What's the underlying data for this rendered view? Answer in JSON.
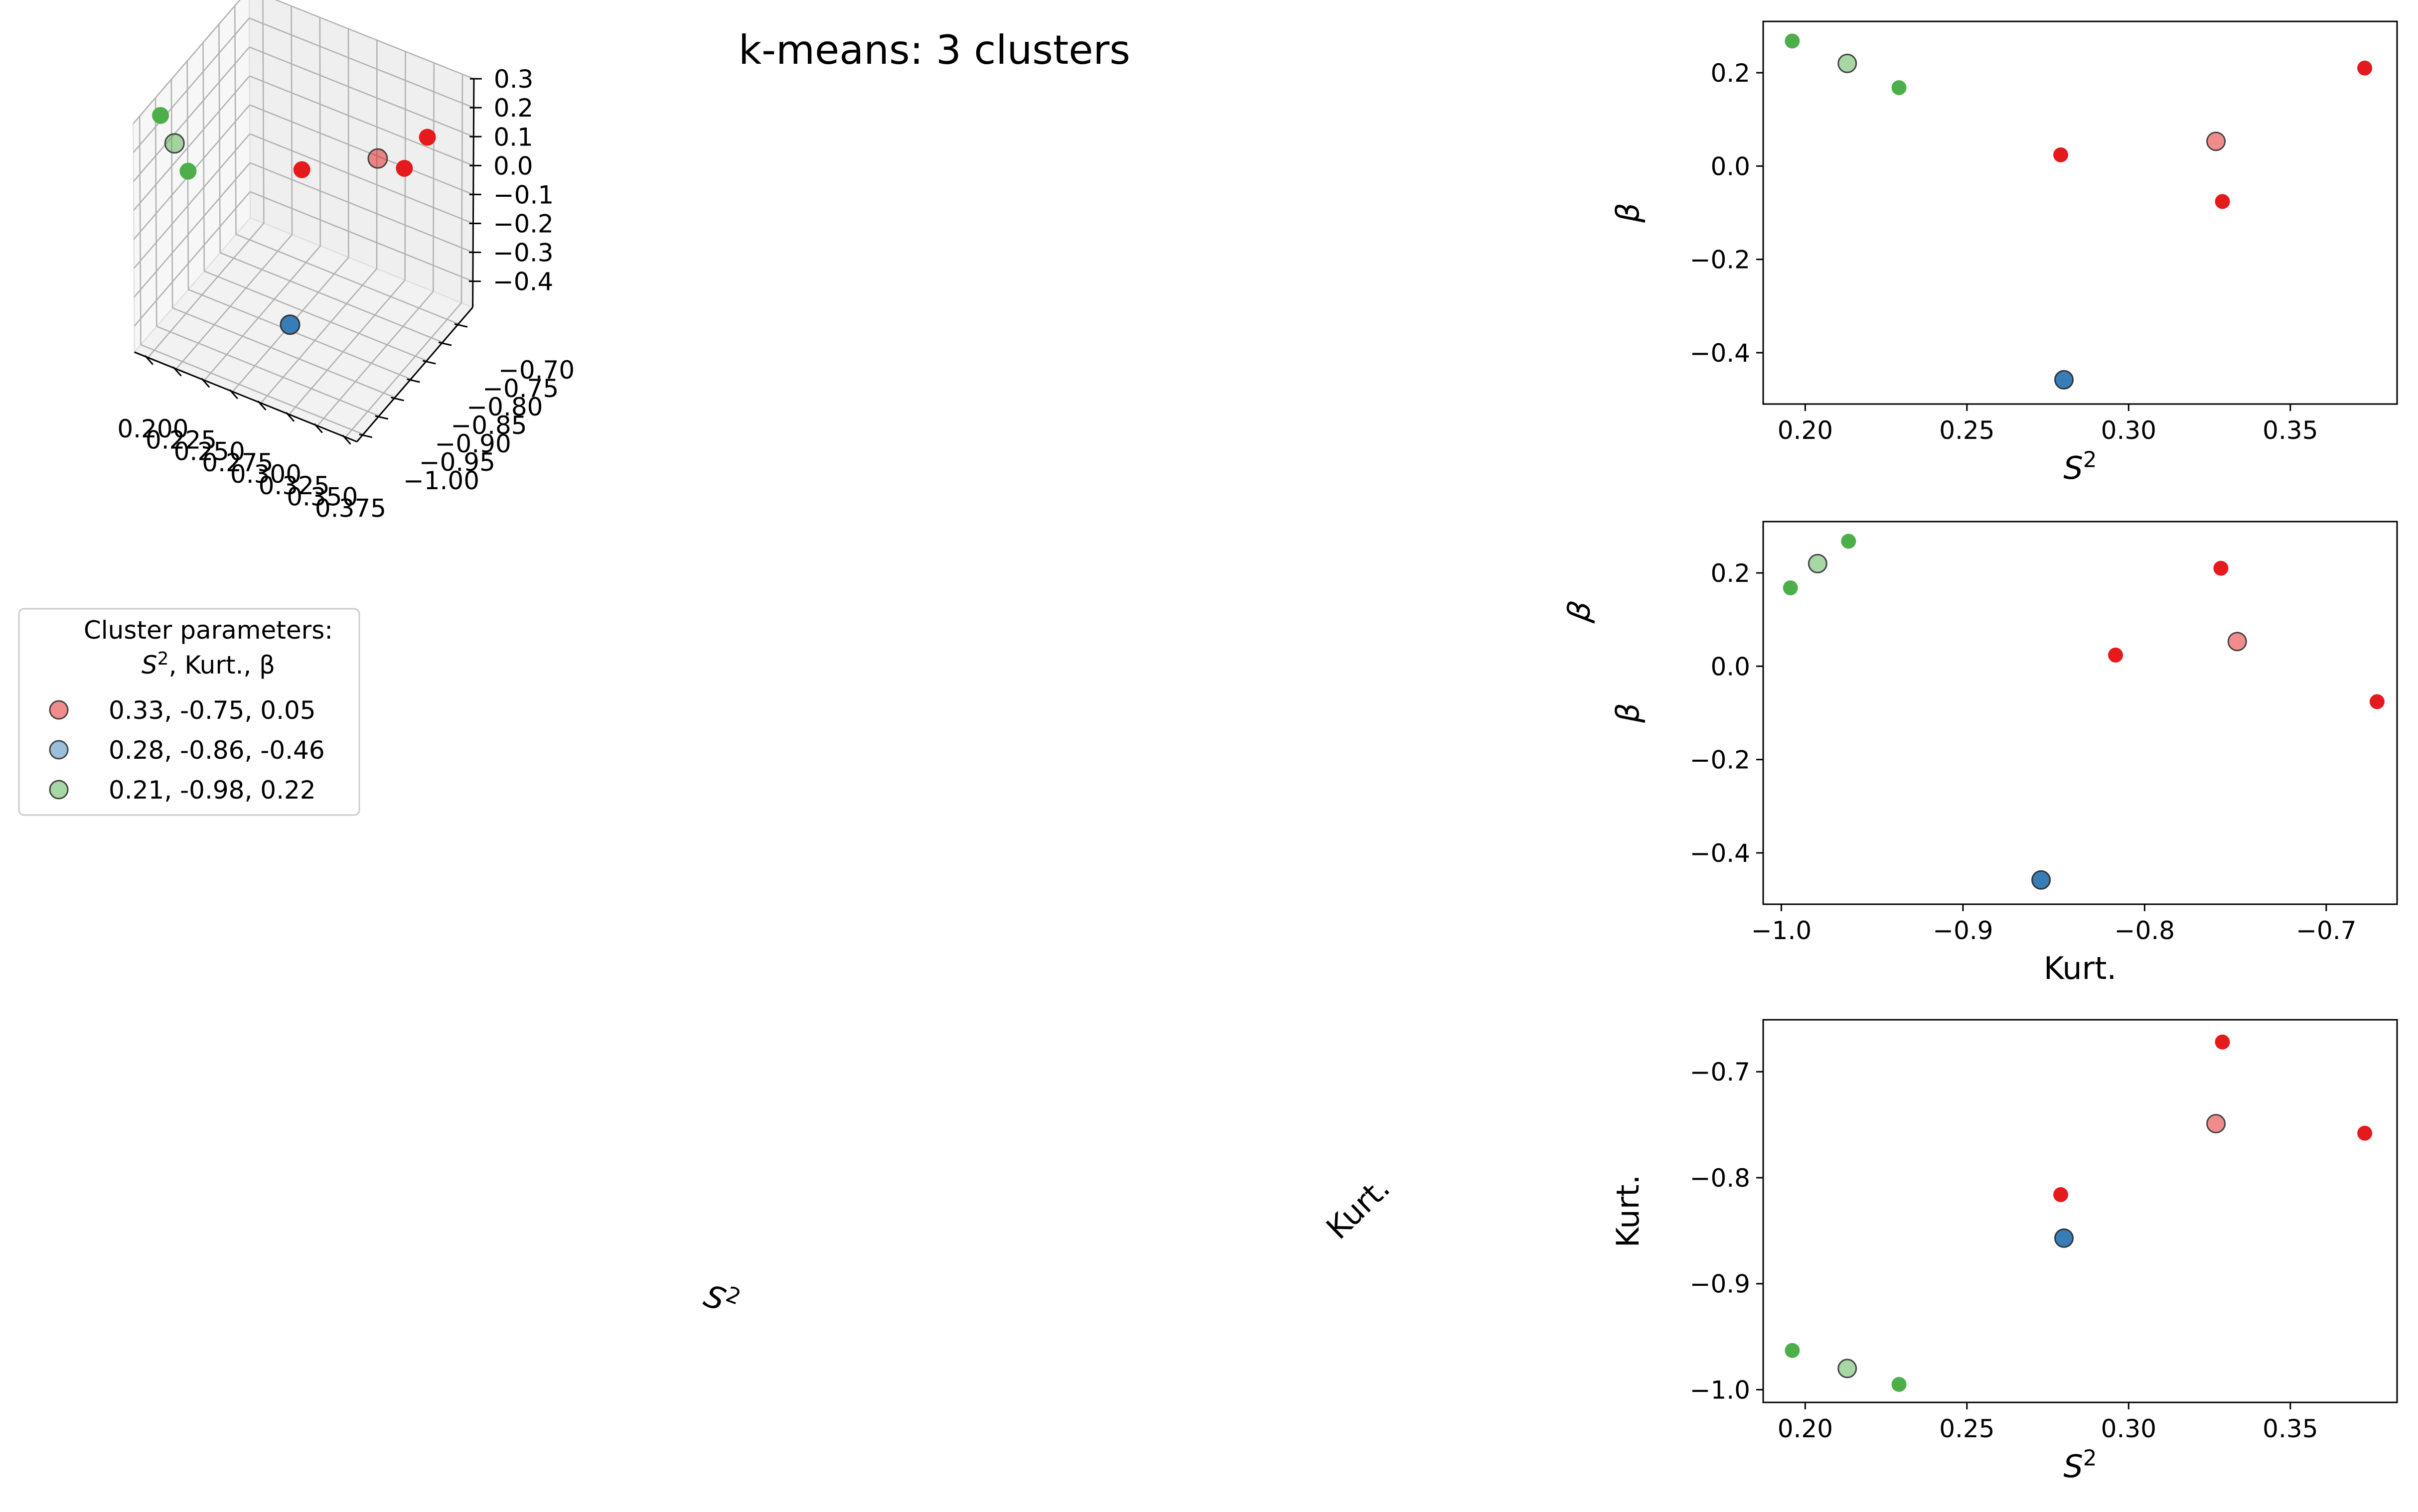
{
  "figure": {
    "title": "k-means: 3 clusters",
    "colors": {
      "red": "#e41a1c",
      "blue": "#377eb8",
      "green": "#4daf4a",
      "pane": "#f2f2f2",
      "grid": "#b0b0b0"
    }
  },
  "legend": {
    "title_line1": "Cluster parameters:",
    "title_line2_prefix": "S",
    "title_line2_sup": "2",
    "title_line2_rest": ", Kurt., β",
    "entries": [
      {
        "label": "0.33, -0.75, 0.05",
        "color": "#e41a1c"
      },
      {
        "label": "0.28, -0.86, -0.46",
        "color": "#377eb8"
      },
      {
        "label": "0.21, -0.98, 0.22",
        "color": "#4daf4a"
      }
    ]
  },
  "chart_data": [
    {
      "type": "scatter",
      "projection": "3d",
      "title": "k-means: 3 clusters",
      "xlabel": "S²",
      "ylabel": "Kurt.",
      "zlabel": "β",
      "xlim": [
        0.188,
        0.385
      ],
      "ylim": [
        -1.02,
        -0.655
      ],
      "zlim": [
        -0.49,
        0.3
      ],
      "xticks": [
        "0.200",
        "0.225",
        "0.250",
        "0.275",
        "0.300",
        "0.325",
        "0.350",
        "0.375"
      ],
      "yticks": [
        "−1.00",
        "−0.95",
        "−0.90",
        "−0.85",
        "−0.80",
        "−0.75",
        "−0.70"
      ],
      "zticks": [
        "−0.4",
        "−0.3",
        "−0.2",
        "−0.1",
        "0.0",
        "0.1",
        "0.2",
        "0.3"
      ],
      "points": [
        {
          "S2": 0.196,
          "kurt": -0.963,
          "beta": 0.268,
          "cluster": 3
        },
        {
          "S2": 0.229,
          "kurt": -0.995,
          "beta": 0.168,
          "cluster": 3
        },
        {
          "S2": 0.279,
          "kurt": -0.816,
          "beta": 0.024,
          "cluster": 1
        },
        {
          "S2": 0.329,
          "kurt": -0.672,
          "beta": -0.076,
          "cluster": 1
        },
        {
          "S2": 0.373,
          "kurt": -0.758,
          "beta": 0.21,
          "cluster": 1
        },
        {
          "S2": 0.28,
          "kurt": -0.857,
          "beta": -0.458,
          "cluster": 2
        }
      ],
      "centroids": [
        {
          "S2": 0.327,
          "kurt": -0.749,
          "beta": 0.053,
          "cluster": 1
        },
        {
          "S2": 0.28,
          "kurt": -0.857,
          "beta": -0.458,
          "cluster": 2
        },
        {
          "S2": 0.213,
          "kurt": -0.98,
          "beta": 0.22,
          "cluster": 3
        }
      ]
    },
    {
      "type": "scatter",
      "xlabel": "S²",
      "ylabel": "β",
      "xlim": [
        0.187,
        0.383
      ],
      "ylim": [
        -0.51,
        0.31
      ],
      "xticks": [
        "0.20",
        "0.25",
        "0.30",
        "0.35"
      ],
      "yticks": [
        "−0.4",
        "−0.2",
        "0.0",
        "0.2"
      ],
      "x_field": "S2",
      "y_field": "beta"
    },
    {
      "type": "scatter",
      "xlabel": "Kurt.",
      "ylabel": "β",
      "xlim": [
        -1.01,
        -0.661
      ],
      "ylim": [
        -0.51,
        0.31
      ],
      "xticks": [
        "−1.0",
        "−0.9",
        "−0.8",
        "−0.7"
      ],
      "yticks": [
        "−0.4",
        "−0.2",
        "0.0",
        "0.2"
      ],
      "x_field": "kurt",
      "y_field": "beta"
    },
    {
      "type": "scatter",
      "xlabel": "S²",
      "ylabel": "Kurt.",
      "xlim": [
        0.187,
        0.383
      ],
      "ylim": [
        -1.012,
        -0.651
      ],
      "xticks": [
        "0.20",
        "0.25",
        "0.30",
        "0.35"
      ],
      "yticks": [
        "−1.0",
        "−0.9",
        "−0.8",
        "−0.7"
      ],
      "x_field": "S2",
      "y_field": "kurt"
    }
  ]
}
